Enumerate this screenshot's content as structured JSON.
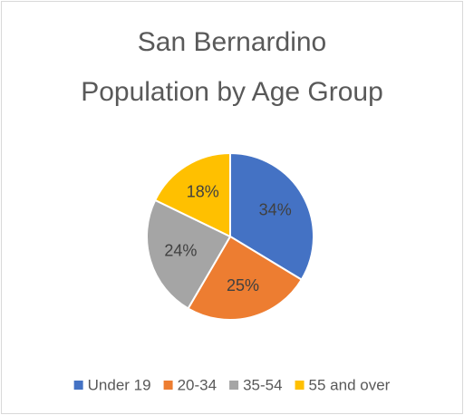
{
  "chart_data": {
    "type": "pie",
    "title": [
      "San Bernardino",
      "Population by Age Group"
    ],
    "categories": [
      "Under 19",
      "20-34",
      "35-54",
      "55 and over"
    ],
    "values": [
      34,
      25,
      24,
      18
    ],
    "value_labels": [
      "34%",
      "25%",
      "24%",
      "18%"
    ],
    "colors": [
      "#4472c4",
      "#ed7d31",
      "#a5a5a5",
      "#ffc000"
    ],
    "legend": "bottom"
  }
}
